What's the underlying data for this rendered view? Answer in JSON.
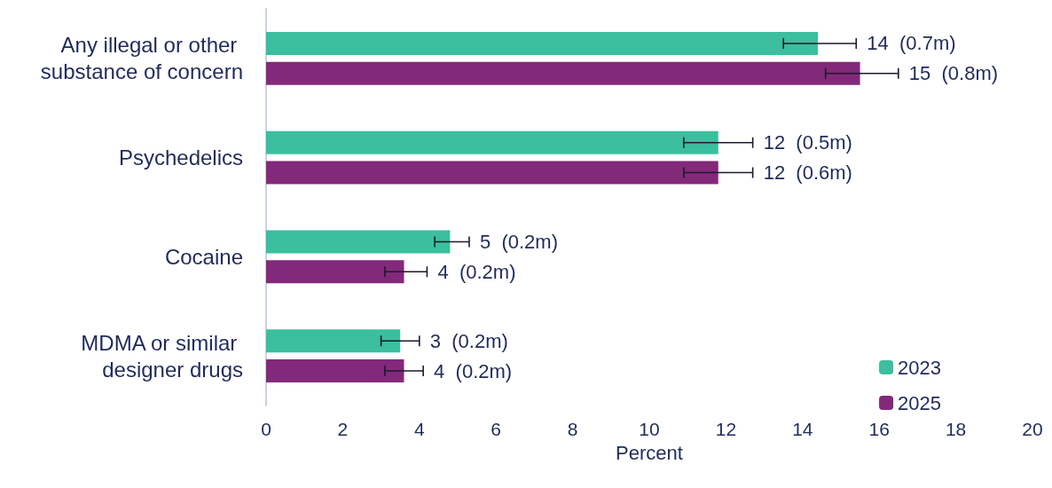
{
  "chart_data": {
    "type": "bar",
    "orientation": "horizontal",
    "xlabel": "Percent",
    "categories": [
      "Any illegal or other substance of concern",
      "Psychedelics",
      "Cocaine",
      "MDMA or similar designer drugs"
    ],
    "series": [
      {
        "name": "2023",
        "color": "#3bbf9e",
        "values": [
          14.4,
          11.8,
          4.8,
          3.5
        ],
        "errors": [
          [
            13.5,
            15.4
          ],
          [
            10.9,
            12.7
          ],
          [
            4.4,
            5.3
          ],
          [
            3.0,
            4.0
          ]
        ],
        "value_labels": [
          "14  (0.7m)",
          "12  (0.5m)",
          "5  (0.2m)",
          "3  (0.2m)"
        ]
      },
      {
        "name": "2025",
        "color": "#83297a",
        "values": [
          15.5,
          11.8,
          3.6,
          3.6
        ],
        "errors": [
          [
            14.6,
            16.5
          ],
          [
            10.9,
            12.7
          ],
          [
            3.1,
            4.2
          ],
          [
            3.1,
            4.1
          ]
        ],
        "value_labels": [
          "15  (0.8m)",
          "12  (0.6m)",
          "4  (0.2m)",
          "4  (0.2m)"
        ]
      }
    ],
    "xlim": [
      0,
      20
    ],
    "xticks": [
      0,
      2,
      4,
      6,
      8,
      10,
      12,
      14,
      16,
      18,
      20
    ],
    "grid": false,
    "legend": "bottom right"
  }
}
